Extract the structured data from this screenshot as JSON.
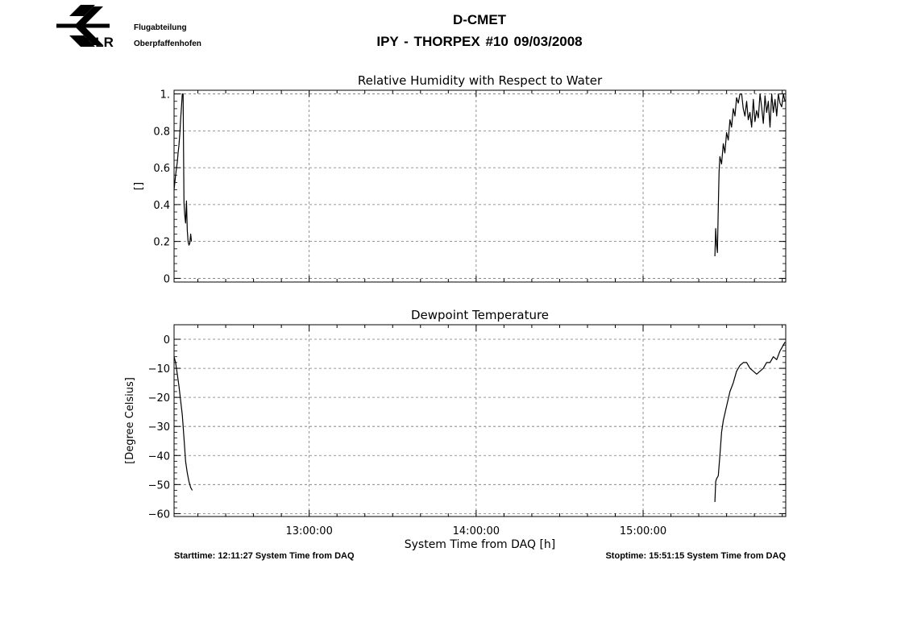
{
  "header": {
    "logo_text": "DLR",
    "org_line1": "Flugabteilung",
    "org_line2": "Oberpfaffenhofen",
    "title": "D-CMET",
    "subtitle": "IPY - THORPEX #10   09/03/2008"
  },
  "footer": {
    "start": "Starttime: 12:11:27 System Time from DAQ",
    "stop": "Stoptime: 15:51:15 System Time from DAQ"
  },
  "chart_data": [
    {
      "type": "line",
      "title": "Relative Humidity with Respect to Water",
      "xlabel": "",
      "ylabel": "[]",
      "x_unit": "hours",
      "xlim": [
        12.1908,
        15.8542
      ],
      "ylim": [
        -0.02,
        1.02
      ],
      "yticks": [
        0,
        0.2,
        0.4,
        0.6,
        0.8,
        1.0
      ],
      "ytick_labels": [
        "0",
        "0.2",
        "0.4",
        "0.6",
        "0.8",
        "1."
      ],
      "xticks": [
        13,
        14,
        15
      ],
      "xtick_labels": [],
      "grid": true,
      "segments": [
        {
          "x": [
            12.19,
            12.2,
            12.21,
            12.215,
            12.22,
            12.225,
            12.23,
            12.235,
            12.24,
            12.245,
            12.25,
            12.255,
            12.26,
            12.265,
            12.27,
            12.275,
            12.28,
            12.285,
            12.29,
            12.295
          ],
          "y": [
            0.48,
            0.56,
            0.63,
            0.68,
            0.72,
            0.78,
            0.86,
            0.93,
            1.0,
            1.0,
            0.41,
            0.34,
            0.3,
            0.42,
            0.26,
            0.2,
            0.18,
            0.19,
            0.24,
            0.2
          ]
        },
        {
          "x": [
            15.43,
            15.435,
            15.44,
            15.445,
            15.45,
            15.455,
            15.46,
            15.47,
            15.48,
            15.49,
            15.5,
            15.51,
            15.52,
            15.53,
            15.54,
            15.55,
            15.56,
            15.57,
            15.58,
            15.59,
            15.6,
            15.61,
            15.62,
            15.63,
            15.64,
            15.65,
            15.66,
            15.67,
            15.68,
            15.69,
            15.7,
            15.71,
            15.72,
            15.73,
            15.74,
            15.75,
            15.76,
            15.77,
            15.78,
            15.79,
            15.8,
            15.81,
            15.82,
            15.83,
            15.84,
            15.85
          ],
          "y": [
            0.12,
            0.27,
            0.18,
            0.14,
            0.38,
            0.58,
            0.66,
            0.62,
            0.73,
            0.68,
            0.79,
            0.75,
            0.86,
            0.82,
            0.92,
            0.88,
            0.98,
            0.95,
            1.0,
            1.0,
            0.92,
            0.88,
            0.96,
            0.86,
            0.9,
            0.82,
            0.97,
            0.85,
            0.91,
            0.87,
            1.0,
            0.93,
            0.84,
            0.99,
            0.9,
            0.96,
            0.82,
            1.0,
            0.9,
            0.97,
            0.88,
            1.0,
            0.95,
            0.93,
            1.0,
            0.96
          ]
        }
      ]
    },
    {
      "type": "line",
      "title": "Dewpoint Temperature",
      "xlabel": "System Time from DAQ [h]",
      "ylabel": "[Degree Celsius]",
      "x_unit": "hours",
      "xlim": [
        12.1908,
        15.8542
      ],
      "ylim": [
        -61,
        5
      ],
      "yticks": [
        0,
        -10,
        -20,
        -30,
        -40,
        -50,
        -60
      ],
      "ytick_labels": [
        "0",
        "−10",
        "−20",
        "−30",
        "−40",
        "−50",
        "−60"
      ],
      "xticks": [
        13,
        14,
        15
      ],
      "xtick_labels": [
        "13:00:00",
        "14:00:00",
        "15:00:00"
      ],
      "grid": true,
      "segments": [
        {
          "x": [
            12.19,
            12.2,
            12.21,
            12.22,
            12.23,
            12.24,
            12.25,
            12.26,
            12.27,
            12.28,
            12.29,
            12.3
          ],
          "y": [
            -6,
            -8,
            -12,
            -16,
            -21,
            -26,
            -34,
            -42,
            -46,
            -49,
            -51,
            -52
          ]
        },
        {
          "x": [
            15.43,
            15.435,
            15.44,
            15.45,
            15.46,
            15.47,
            15.48,
            15.5,
            15.52,
            15.54,
            15.56,
            15.58,
            15.6,
            15.62,
            15.64,
            15.66,
            15.68,
            15.7,
            15.72,
            15.74,
            15.76,
            15.78,
            15.8,
            15.82,
            15.84,
            15.85
          ],
          "y": [
            -56,
            -49,
            -48,
            -47,
            -40,
            -32,
            -28,
            -23,
            -18,
            -15,
            -11,
            -9,
            -8,
            -8,
            -10,
            -11,
            -12,
            -11,
            -10,
            -8,
            -8,
            -6,
            -7,
            -4,
            -2,
            -1
          ]
        }
      ]
    }
  ]
}
